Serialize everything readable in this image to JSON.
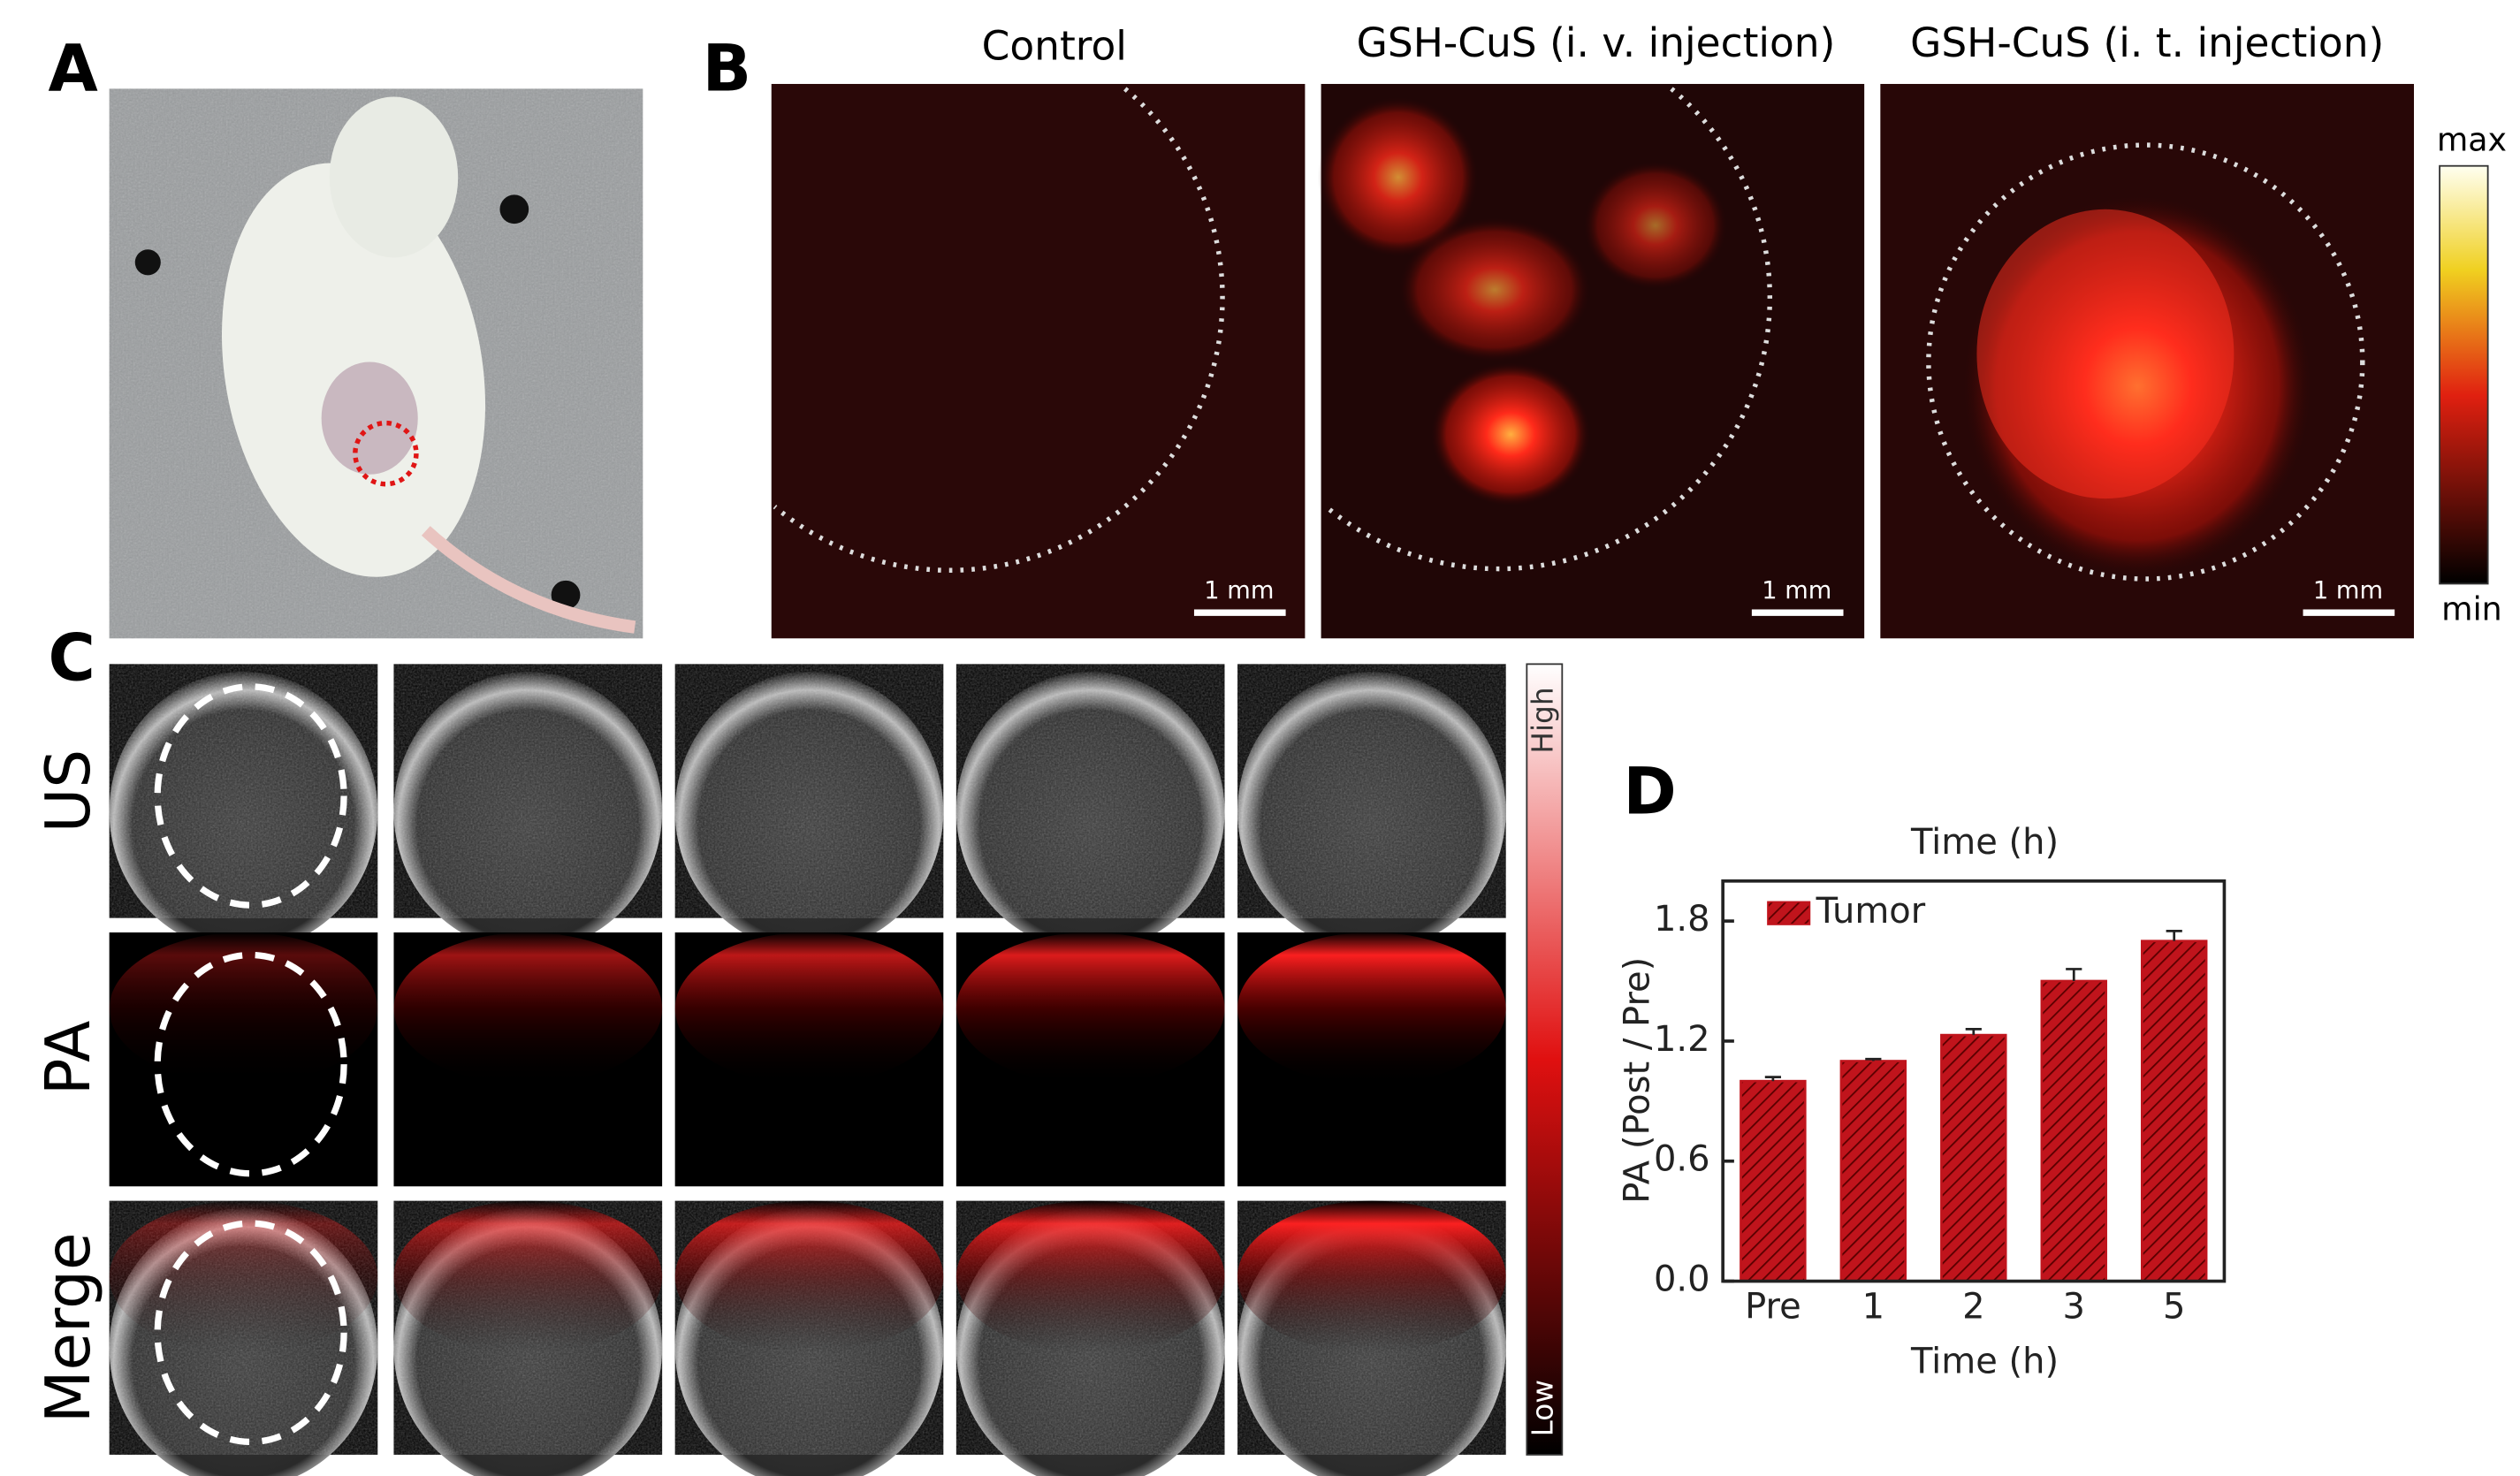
{
  "panels": {
    "a": "A",
    "b": "B",
    "c": "C",
    "d": "D"
  },
  "panel_b": {
    "titles": [
      "Control",
      "GSH-CuS (i. v. injection)",
      "GSH-CuS (i. t. injection)"
    ],
    "scale_bar": "1 mm",
    "colorbar_max": "max",
    "colorbar_min": "min"
  },
  "panel_c": {
    "rows": [
      "US",
      "PA",
      "Merge"
    ],
    "colorbar_high": "High",
    "colorbar_low": "Low"
  },
  "chart_data": {
    "type": "bar",
    "title": "Time (h)",
    "x_label": "Time (h)",
    "y_label": "PA (Post / Pre)",
    "categories": [
      "Pre",
      "1",
      "2",
      "3",
      "5"
    ],
    "series": [
      {
        "name": "Tumor",
        "color": "#c0141c",
        "values": [
          1.0,
          1.1,
          1.23,
          1.5,
          1.7
        ],
        "errors": [
          0.02,
          0.01,
          0.03,
          0.06,
          0.05
        ]
      }
    ],
    "ylim": [
      0,
      2.0
    ],
    "yticks": [
      {
        "value": 0,
        "label": "0.0"
      },
      0.6,
      1.2,
      1.8
    ],
    "legend": "upper left"
  }
}
